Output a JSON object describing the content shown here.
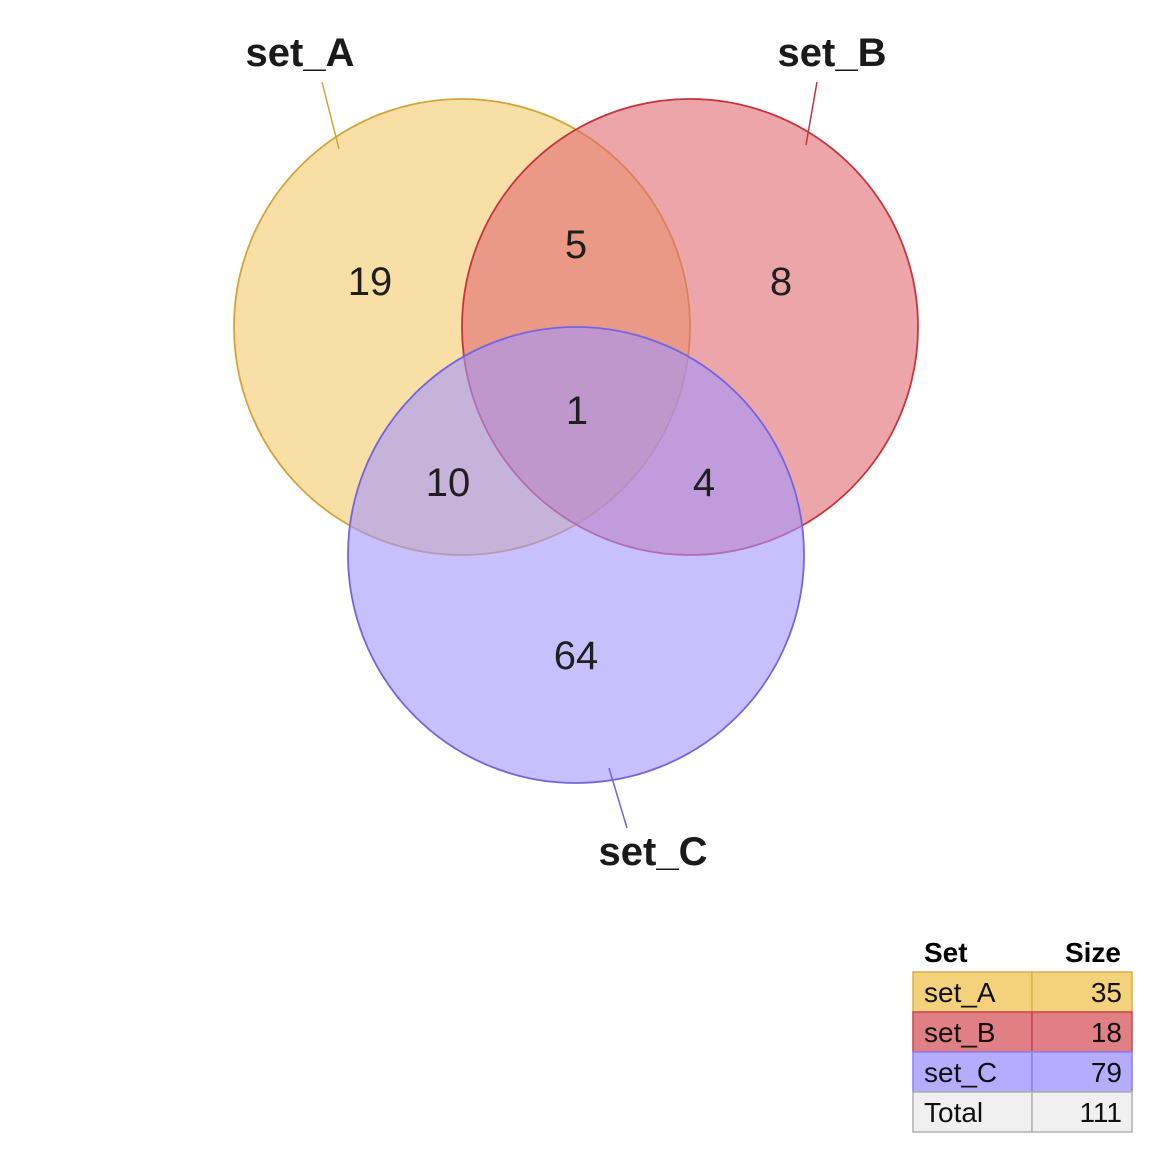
{
  "sets": [
    {
      "name": "set_A",
      "fill": "#f3c96b",
      "stroke": "#d2a43a",
      "cell_fill": "#f4d27b",
      "cell_stroke": "#d9b04b"
    },
    {
      "name": "set_B",
      "fill": "#e06b71",
      "stroke": "#c8343d",
      "cell_fill": "#e08084",
      "cell_stroke": "#c8474e"
    },
    {
      "name": "set_C",
      "fill": "#a396fd",
      "stroke": "#7564e0",
      "cell_fill": "#b6acff",
      "cell_stroke": "#8c7ff0"
    }
  ],
  "regions": {
    "A_only": "19",
    "B_only": "8",
    "C_only": "64",
    "AB": "5",
    "AC": "10",
    "BC": "4",
    "ABC": "1"
  },
  "table": {
    "header_set": "Set",
    "header_size": "Size",
    "rows": [
      {
        "set": "set_A",
        "size": "35"
      },
      {
        "set": "set_B",
        "size": "18"
      },
      {
        "set": "set_C",
        "size": "79"
      },
      {
        "set": "Total",
        "size": "111"
      }
    ],
    "total_fill": "#f0f0f0",
    "total_stroke": "#b0b0b0"
  }
}
